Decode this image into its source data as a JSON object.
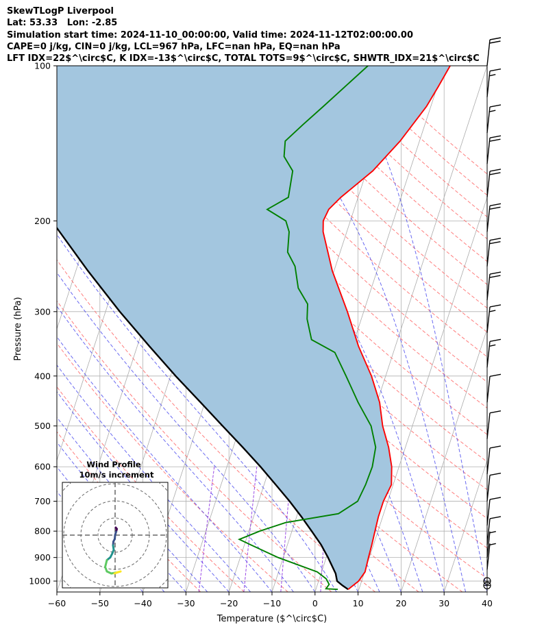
{
  "title_lines": [
    "SkewTLogP Liverpool",
    "Lat: 53.33   Lon: -2.85",
    "Simulation start time: 2024-11-10_00:00:00, Valid time: 2024-11-12T02:00:00.00",
    "CAPE=0 j/kg, CIN=0 j/kg, LCL=967 hPa, LFC=nan hPa, EQ=nan hPa",
    "LFT IDX=22$^\\circ$C, K IDX=-13$^\\circ$C, TOTAL TOTS=9$^\\circ$C, SHWTR_IDX=21$^\\circ$C"
  ],
  "colors": {
    "temperature": "#ff0000",
    "dewpoint": "#008000",
    "parcel": "#000000",
    "cape_fill": "#a3c6df",
    "dry_adiabat": "#ff6666",
    "moist_adiabat": "#4444ee",
    "mixing_ratio": "#8a2be2",
    "isotherm": "#aaaaaa",
    "grid": "#b0b0b0"
  },
  "chart_data": [
    {
      "type": "line",
      "subtype": "skew-t log-p",
      "title": "",
      "xlabel": "Temperature ($^\\circ$C)",
      "ylabel": "Pressure (hPa)",
      "xlim": [
        -60,
        40
      ],
      "ylim": [
        1050,
        100
      ],
      "y_scale": "log",
      "x_ticks": [
        -60,
        -50,
        -40,
        -30,
        -20,
        -10,
        0,
        10,
        20,
        30,
        40
      ],
      "y_ticks": [
        1000,
        900,
        800,
        700,
        600,
        500,
        400,
        300,
        200,
        100
      ],
      "grid": true,
      "series": [
        {
          "key": "temperature",
          "points": [
            [
              1038,
              7.5
            ],
            [
              1000,
              9.3
            ],
            [
              960,
              10.1
            ],
            [
              900,
              9.8
            ],
            [
              850,
              9.6
            ],
            [
              800,
              9.3
            ],
            [
              750,
              9.0
            ],
            [
              700,
              9.0
            ],
            [
              650,
              9.6
            ],
            [
              600,
              8.3
            ],
            [
              550,
              6.1
            ],
            [
              500,
              3.1
            ],
            [
              450,
              0.6
            ],
            [
              400,
              -3.3
            ],
            [
              350,
              -8.6
            ],
            [
              300,
              -13.8
            ],
            [
              250,
              -20.4
            ],
            [
              210,
              -25.5
            ],
            [
              200,
              -26.3
            ],
            [
              190,
              -25.9
            ],
            [
              180,
              -24.0
            ],
            [
              160,
              -18.6
            ],
            [
              140,
              -14.5
            ],
            [
              120,
              -11.0
            ],
            [
              110,
              -9.8
            ],
            [
              100,
              -8.6
            ]
          ]
        },
        {
          "key": "dewpoint",
          "points": [
            [
              1038,
              5.1
            ],
            [
              1035,
              2.3
            ],
            [
              1015,
              2.7
            ],
            [
              990,
              1.6
            ],
            [
              960,
              -1.0
            ],
            [
              900,
              -11.2
            ],
            [
              850,
              -18.6
            ],
            [
              830,
              -21.6
            ],
            [
              800,
              -17.5
            ],
            [
              770,
              -12.1
            ],
            [
              740,
              -0.5
            ],
            [
              700,
              3.0
            ],
            [
              650,
              3.6
            ],
            [
              600,
              3.8
            ],
            [
              550,
              3.1
            ],
            [
              500,
              0.4
            ],
            [
              450,
              -4.4
            ],
            [
              400,
              -9.2
            ],
            [
              360,
              -13.6
            ],
            [
              340,
              -20.0
            ],
            [
              310,
              -22.6
            ],
            [
              290,
              -23.6
            ],
            [
              270,
              -27.0
            ],
            [
              245,
              -29.4
            ],
            [
              230,
              -32.2
            ],
            [
              210,
              -33.4
            ],
            [
              200,
              -35.0
            ],
            [
              190,
              -40.2
            ],
            [
              180,
              -36.2
            ],
            [
              160,
              -37.2
            ],
            [
              150,
              -40.3
            ],
            [
              140,
              -41.2
            ],
            [
              130,
              -38.3
            ],
            [
              120,
              -35.0
            ],
            [
              100,
              -27.7
            ]
          ]
        },
        {
          "key": "parcel",
          "points": [
            [
              1038,
              7.5
            ],
            [
              1020,
              5.9
            ],
            [
              1000,
              4.3
            ],
            [
              967,
              3.4
            ],
            [
              900,
              0.4
            ],
            [
              850,
              -2.2
            ],
            [
              800,
              -5.4
            ],
            [
              750,
              -8.9
            ],
            [
              700,
              -12.8
            ],
            [
              650,
              -17.3
            ],
            [
              600,
              -22.2
            ],
            [
              550,
              -27.8
            ],
            [
              500,
              -34.1
            ],
            [
              450,
              -41.0
            ],
            [
              400,
              -48.8
            ],
            [
              350,
              -57.2
            ],
            [
              300,
              -66.7
            ],
            [
              250,
              -77.2
            ],
            [
              200,
              -89.4
            ],
            [
              150,
              -103.4
            ],
            [
              100,
              -121.0
            ]
          ]
        }
      ],
      "wind_barbs": [
        {
          "p": 100,
          "knots": 20
        },
        {
          "p": 115,
          "knots": 15
        },
        {
          "p": 135,
          "knots": 15
        },
        {
          "p": 155,
          "knots": 20
        },
        {
          "p": 180,
          "knots": 20
        },
        {
          "p": 210,
          "knots": 20
        },
        {
          "p": 245,
          "knots": 20
        },
        {
          "p": 285,
          "knots": 20
        },
        {
          "p": 330,
          "knots": 15
        },
        {
          "p": 385,
          "knots": 15
        },
        {
          "p": 450,
          "knots": 10
        },
        {
          "p": 530,
          "knots": 10
        },
        {
          "p": 620,
          "knots": 10
        },
        {
          "p": 700,
          "knots": 10
        },
        {
          "p": 780,
          "knots": 10
        },
        {
          "p": 850,
          "knots": 10
        },
        {
          "p": 900,
          "knots": 5
        },
        {
          "p": 950,
          "knots": 5
        },
        {
          "p": 1000,
          "knots": 0
        },
        {
          "p": 1020,
          "knots": 0
        }
      ]
    },
    {
      "type": "line",
      "subtype": "hodograph",
      "title_lines": [
        "Wind Profile",
        "10m/s increment"
      ],
      "rings": [
        1,
        2,
        3,
        4
      ],
      "colormap": [
        "#440154",
        "#3b528b",
        "#21918c",
        "#5ec962",
        "#fde725"
      ],
      "points": [
        [
          0.2,
          -2.2
        ],
        [
          0.5,
          -1.8
        ],
        [
          0.3,
          -1.0
        ],
        [
          0.0,
          0.0
        ],
        [
          -0.1,
          1.1
        ],
        [
          -0.5,
          1.9
        ],
        [
          -0.6,
          3.0
        ],
        [
          -0.4,
          4.3
        ],
        [
          -0.8,
          5.3
        ],
        [
          -1.4,
          6.5
        ],
        [
          -2.4,
          7.3
        ],
        [
          -2.9,
          9.3
        ],
        [
          -2.4,
          10.6
        ],
        [
          -1.1,
          11.2
        ],
        [
          0.5,
          10.9
        ],
        [
          1.6,
          10.6
        ],
        [
          -0.2,
          11.2
        ]
      ]
    }
  ]
}
